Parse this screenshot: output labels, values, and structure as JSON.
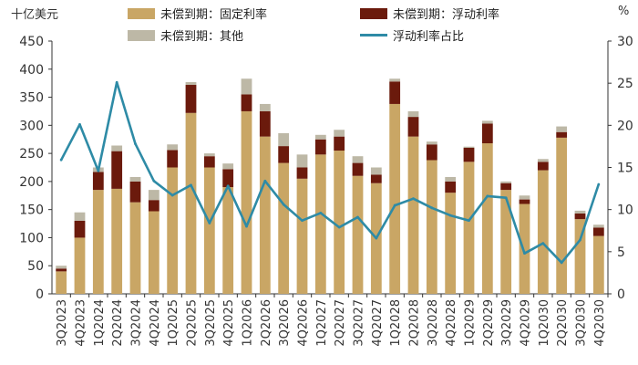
{
  "units": {
    "left": "十亿美元",
    "right": "%"
  },
  "colors": {
    "fixed": "#c9a665",
    "floating": "#6b1a0c",
    "other": "#bdb8a6",
    "ratio": "#2e8ba6",
    "axis": "#333333",
    "tick_text": "#333333"
  },
  "chart_data": {
    "type": "bar",
    "stacked": true,
    "categories": [
      "3Q2023",
      "4Q2023",
      "1Q2024",
      "2Q2024",
      "3Q2024",
      "4Q2024",
      "1Q2025",
      "2Q2025",
      "3Q2025",
      "4Q2025",
      "1Q2026",
      "2Q2026",
      "3Q2026",
      "4Q2026",
      "1Q2027",
      "2Q2027",
      "3Q2027",
      "4Q2027",
      "1Q2028",
      "2Q2028",
      "3Q2028",
      "4Q2028",
      "1Q2029",
      "2Q2029",
      "3Q2029",
      "4Q2029",
      "1Q2030",
      "2Q2030",
      "3Q2030",
      "4Q2030"
    ],
    "series": [
      {
        "name": "未偿到期：固定利率",
        "axis": "left",
        "type": "bar",
        "values": [
          40,
          100,
          185,
          187,
          163,
          147,
          225,
          322,
          225,
          190,
          325,
          280,
          233,
          205,
          248,
          255,
          210,
          197,
          338,
          280,
          238,
          180,
          235,
          268,
          185,
          160,
          220,
          278,
          133,
          103
        ]
      },
      {
        "name": "未偿到期：浮动利率",
        "axis": "left",
        "type": "bar",
        "values": [
          5,
          30,
          32,
          67,
          37,
          20,
          31,
          50,
          20,
          32,
          30,
          45,
          30,
          20,
          27,
          25,
          23,
          15,
          40,
          35,
          28,
          20,
          25,
          35,
          12,
          8,
          15,
          10,
          10,
          15
        ]
      },
      {
        "name": "未偿到期：其他",
        "axis": "left",
        "type": "bar",
        "values": [
          5,
          15,
          8,
          10,
          8,
          18,
          10,
          5,
          5,
          10,
          28,
          13,
          23,
          23,
          8,
          12,
          12,
          13,
          5,
          10,
          5,
          8,
          2,
          5,
          3,
          7,
          5,
          10,
          5,
          5
        ]
      },
      {
        "name": "浮动利率占比",
        "axis": "right",
        "type": "line",
        "values": [
          15.9,
          20.1,
          14.6,
          25.1,
          17.8,
          13.4,
          11.7,
          12.9,
          8.4,
          12.8,
          8.0,
          13.4,
          10.6,
          8.7,
          9.6,
          7.9,
          9.1,
          6.6,
          10.5,
          11.3,
          10.2,
          9.3,
          8.7,
          11.6,
          11.4,
          4.8,
          6.0,
          3.7,
          6.4,
          13.0
        ]
      }
    ],
    "y_left": {
      "range": [
        0,
        450
      ],
      "ticks": [
        0,
        50,
        100,
        150,
        200,
        250,
        300,
        350,
        400,
        450
      ]
    },
    "y_right": {
      "range": [
        0,
        30
      ],
      "ticks": [
        0,
        5,
        10,
        15,
        20,
        25,
        30
      ]
    },
    "legend": "top",
    "grid": false
  }
}
